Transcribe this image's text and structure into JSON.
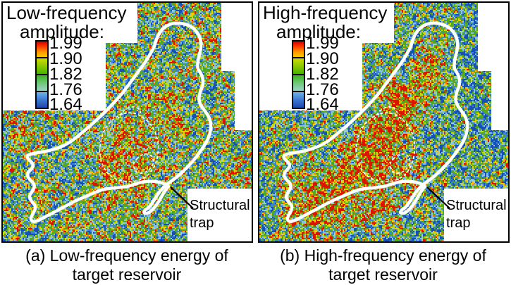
{
  "figure": {
    "panels": [
      {
        "key": "a",
        "legend": {
          "title_line1": "Low-frequency",
          "title_line2": "amplitude:"
        },
        "annotation": {
          "line1": "Structural",
          "line2": "trap"
        },
        "caption": {
          "line1": "(a) Low-frequency energy of",
          "line2": "target reservoir"
        },
        "map": {
          "seed": 11,
          "bias": 0.02,
          "anomaly_blobs": [
            [
              185,
              215,
              42,
              0.22
            ],
            [
              152,
              255,
              32,
              0.16
            ],
            [
              215,
              162,
              30,
              0.15
            ],
            [
              243,
              118,
              26,
              0.13
            ],
            [
              118,
              82,
              28,
              0.11
            ],
            [
              300,
              62,
              24,
              0.12
            ],
            [
              30,
              185,
              26,
              0.12
            ],
            [
              325,
              235,
              22,
              0.11
            ],
            [
              205,
              310,
              26,
              0.12
            ],
            [
              260,
              200,
              24,
              0.1
            ],
            [
              230,
              300,
              30,
              -0.1
            ],
            [
              100,
              240,
              30,
              -0.08
            ]
          ]
        }
      },
      {
        "key": "b",
        "legend": {
          "title_line1": "High-frequency",
          "title_line2": "amplitude:"
        },
        "annotation": {
          "line1": "Structural",
          "line2": "trap"
        },
        "caption": {
          "line1": "(b) High-frequency energy of",
          "line2": "target reservoir"
        },
        "map": {
          "seed": 29,
          "bias": -0.05,
          "anomaly_blobs": [
            [
              95,
              290,
              42,
              0.3
            ],
            [
              130,
              252,
              40,
              0.28
            ],
            [
              162,
              212,
              40,
              0.3
            ],
            [
              188,
              172,
              36,
              0.26
            ],
            [
              208,
              138,
              34,
              0.26
            ],
            [
              235,
              103,
              30,
              0.22
            ],
            [
              60,
              318,
              32,
              0.22
            ],
            [
              257,
              72,
              26,
              0.18
            ],
            [
              215,
              255,
              28,
              0.18
            ],
            [
              172,
              300,
              30,
              0.2
            ],
            [
              115,
              112,
              30,
              0.22
            ],
            [
              45,
              250,
              26,
              0.16
            ],
            [
              300,
              80,
              45,
              -0.12
            ],
            [
              320,
              180,
              40,
              -0.1
            ]
          ]
        }
      }
    ],
    "colorbar": {
      "tick_values": [
        "1.99",
        "1.90",
        "1.82",
        "1.76",
        "1.64"
      ],
      "segment_gradients": [
        [
          "#d20000",
          "#ff3c00",
          "#ff9600",
          "#ffc800"
        ],
        [
          "#cddc00",
          "#8cc800",
          "#46b400"
        ],
        [
          "#3cb41e",
          "#6ec878",
          "#9cd2c8"
        ],
        [
          "#6eb4e6",
          "#3c78d2",
          "#1e46aa"
        ]
      ]
    },
    "noise_palette": {
      "thresholds": [
        0.17,
        0.29,
        0.4,
        0.455,
        0.64,
        0.73,
        0.8,
        0.865,
        0.925,
        9
      ],
      "colors": [
        "#1650b4",
        "#3c82dc",
        "#85bee8",
        "#9cd2c3",
        "#55aa1e",
        "#4fa51e",
        "#c8dc00",
        "#ffc800",
        "#ff7300",
        "#dc1400"
      ]
    }
  }
}
